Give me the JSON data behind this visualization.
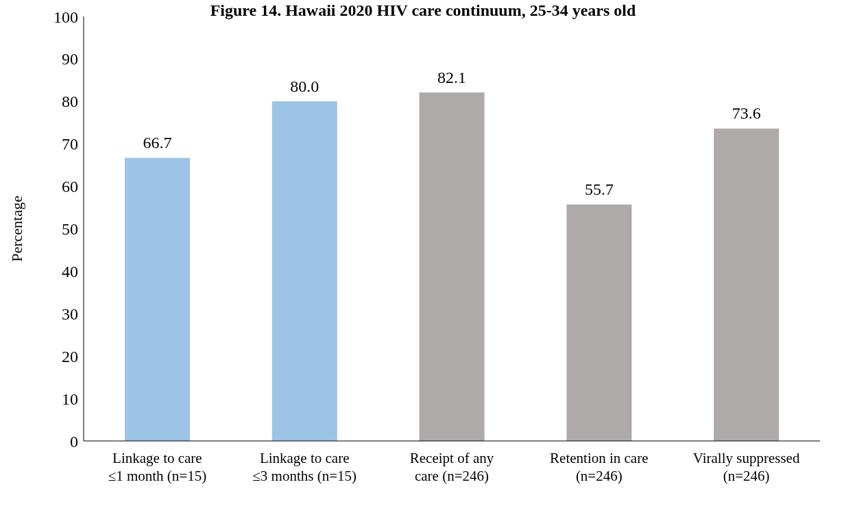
{
  "chart_data": {
    "type": "bar",
    "title": "Figure 14. Hawaii 2020 HIV care continuum, 25-34 years old",
    "ylabel": "Percentage",
    "categories": [
      "Linkage to care\n≤1 month (n=15)",
      "Linkage to care\n≤3 months (n=15)",
      "Receipt of any\ncare (n=246)",
      "Retention in care\n(n=246)",
      "Virally suppressed\n(n=246)"
    ],
    "values": [
      66.7,
      80.0,
      82.1,
      55.7,
      73.6
    ],
    "value_labels": [
      "66.7",
      "80.0",
      "82.1",
      "55.7",
      "73.6"
    ],
    "colors": [
      "#9dc3e6",
      "#9dc3e6",
      "#aeaaaa",
      "#aeaaaa",
      "#aeaaaa"
    ],
    "ylim": [
      0,
      100
    ],
    "yticks": [
      0,
      10,
      20,
      30,
      40,
      50,
      60,
      70,
      80,
      90,
      100
    ],
    "grid": false,
    "legend": false
  }
}
